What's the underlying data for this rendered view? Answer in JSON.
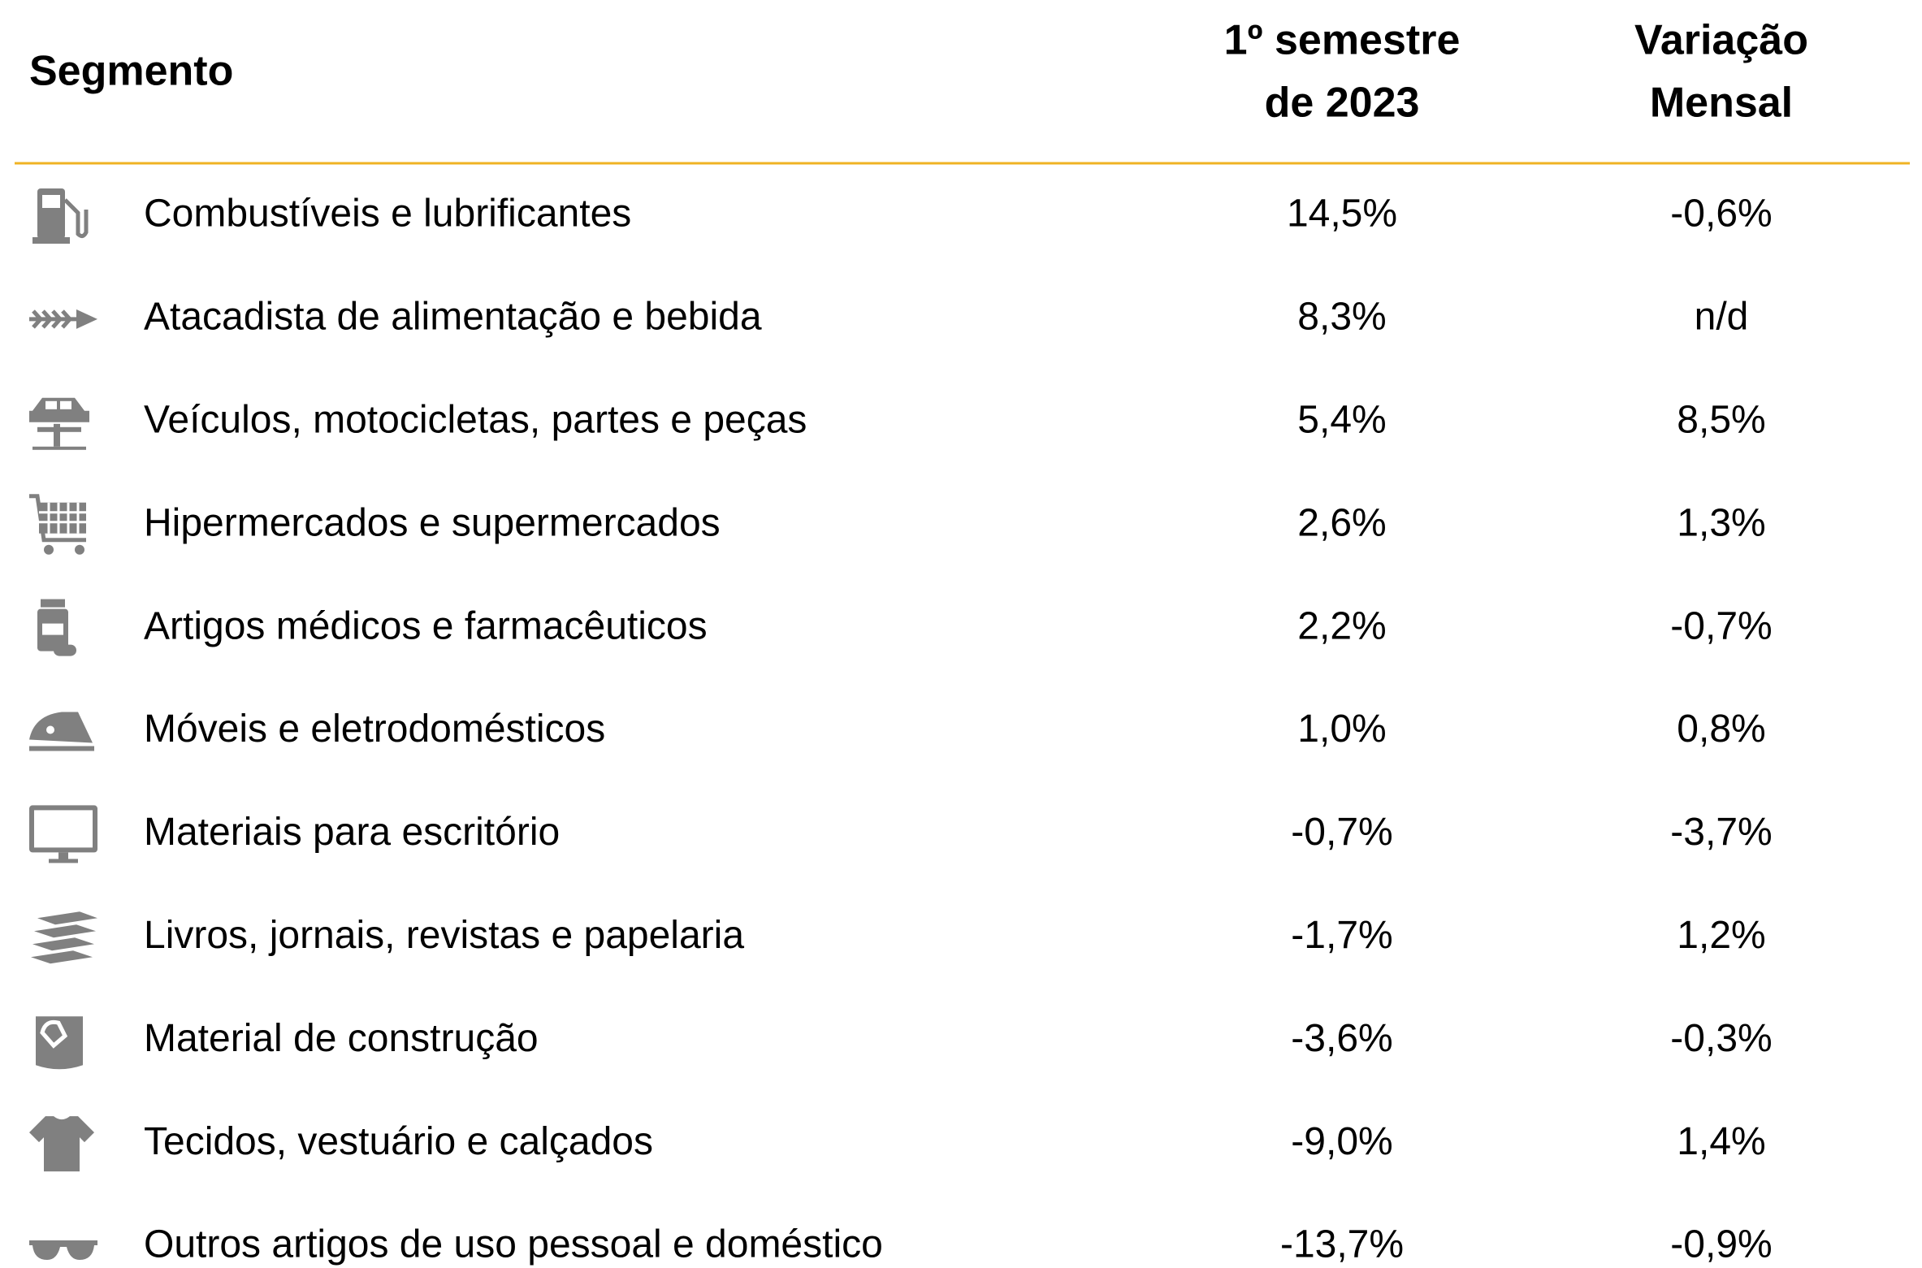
{
  "header": {
    "segment": "Segmento",
    "semester": [
      "1º semestre",
      "de 2023"
    ],
    "monthly": [
      "Variação",
      "Mensal"
    ]
  },
  "table": {
    "rows": [
      [
        "Combustíveis e lubrificantes",
        "14,5%",
        "-0,6%"
      ],
      [
        "Atacadista de alimentação e bebida",
        "8,3%",
        "n/d"
      ],
      [
        "Veículos, motocicletas, partes e peças",
        "5,4%",
        "8,5%"
      ],
      [
        "Hipermercados e supermercados",
        "2,6%",
        "1,3%"
      ],
      [
        "Artigos médicos e farmacêuticos",
        "2,2%",
        "-0,7%"
      ],
      [
        "Móveis e eletrodomésticos",
        "1,0%",
        "0,8%"
      ],
      [
        "Materiais para escritório",
        "-0,7%",
        "-3,7%"
      ],
      [
        "Livros, jornais, revistas e papelaria",
        "-1,7%",
        "1,2%"
      ],
      [
        "Material de construção",
        "-3,6%",
        "-0,3%"
      ],
      [
        "Tecidos, vestuário e calçados",
        "-9,0%",
        "1,4%"
      ],
      [
        "Outros artigos de uso pessoal e doméstico",
        "-13,7%",
        "-0,9%"
      ]
    ]
  }
}
